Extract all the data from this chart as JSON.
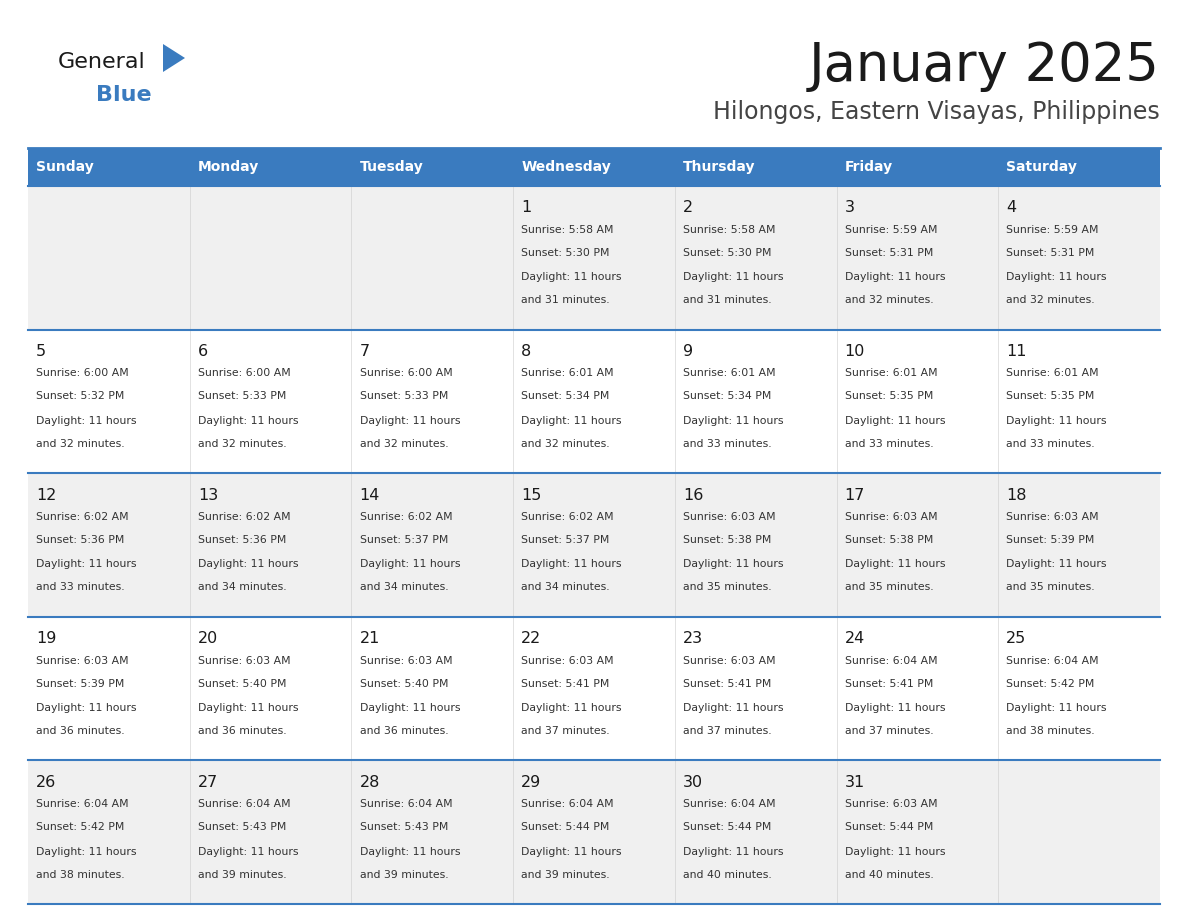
{
  "title": "January 2025",
  "subtitle": "Hilongos, Eastern Visayas, Philippines",
  "header_bg": "#3a7bbf",
  "header_text": "#ffffff",
  "row_bg_odd": "#f0f0f0",
  "row_bg_even": "#ffffff",
  "day_names": [
    "Sunday",
    "Monday",
    "Tuesday",
    "Wednesday",
    "Thursday",
    "Friday",
    "Saturday"
  ],
  "days": [
    {
      "day": 1,
      "col": 3,
      "row": 0,
      "sunrise": "5:58 AM",
      "sunset": "5:30 PM",
      "daylight": "11 hours and 31 minutes."
    },
    {
      "day": 2,
      "col": 4,
      "row": 0,
      "sunrise": "5:58 AM",
      "sunset": "5:30 PM",
      "daylight": "11 hours and 31 minutes."
    },
    {
      "day": 3,
      "col": 5,
      "row": 0,
      "sunrise": "5:59 AM",
      "sunset": "5:31 PM",
      "daylight": "11 hours and 32 minutes."
    },
    {
      "day": 4,
      "col": 6,
      "row": 0,
      "sunrise": "5:59 AM",
      "sunset": "5:31 PM",
      "daylight": "11 hours and 32 minutes."
    },
    {
      "day": 5,
      "col": 0,
      "row": 1,
      "sunrise": "6:00 AM",
      "sunset": "5:32 PM",
      "daylight": "11 hours and 32 minutes."
    },
    {
      "day": 6,
      "col": 1,
      "row": 1,
      "sunrise": "6:00 AM",
      "sunset": "5:33 PM",
      "daylight": "11 hours and 32 minutes."
    },
    {
      "day": 7,
      "col": 2,
      "row": 1,
      "sunrise": "6:00 AM",
      "sunset": "5:33 PM",
      "daylight": "11 hours and 32 minutes."
    },
    {
      "day": 8,
      "col": 3,
      "row": 1,
      "sunrise": "6:01 AM",
      "sunset": "5:34 PM",
      "daylight": "11 hours and 32 minutes."
    },
    {
      "day": 9,
      "col": 4,
      "row": 1,
      "sunrise": "6:01 AM",
      "sunset": "5:34 PM",
      "daylight": "11 hours and 33 minutes."
    },
    {
      "day": 10,
      "col": 5,
      "row": 1,
      "sunrise": "6:01 AM",
      "sunset": "5:35 PM",
      "daylight": "11 hours and 33 minutes."
    },
    {
      "day": 11,
      "col": 6,
      "row": 1,
      "sunrise": "6:01 AM",
      "sunset": "5:35 PM",
      "daylight": "11 hours and 33 minutes."
    },
    {
      "day": 12,
      "col": 0,
      "row": 2,
      "sunrise": "6:02 AM",
      "sunset": "5:36 PM",
      "daylight": "11 hours and 33 minutes."
    },
    {
      "day": 13,
      "col": 1,
      "row": 2,
      "sunrise": "6:02 AM",
      "sunset": "5:36 PM",
      "daylight": "11 hours and 34 minutes."
    },
    {
      "day": 14,
      "col": 2,
      "row": 2,
      "sunrise": "6:02 AM",
      "sunset": "5:37 PM",
      "daylight": "11 hours and 34 minutes."
    },
    {
      "day": 15,
      "col": 3,
      "row": 2,
      "sunrise": "6:02 AM",
      "sunset": "5:37 PM",
      "daylight": "11 hours and 34 minutes."
    },
    {
      "day": 16,
      "col": 4,
      "row": 2,
      "sunrise": "6:03 AM",
      "sunset": "5:38 PM",
      "daylight": "11 hours and 35 minutes."
    },
    {
      "day": 17,
      "col": 5,
      "row": 2,
      "sunrise": "6:03 AM",
      "sunset": "5:38 PM",
      "daylight": "11 hours and 35 minutes."
    },
    {
      "day": 18,
      "col": 6,
      "row": 2,
      "sunrise": "6:03 AM",
      "sunset": "5:39 PM",
      "daylight": "11 hours and 35 minutes."
    },
    {
      "day": 19,
      "col": 0,
      "row": 3,
      "sunrise": "6:03 AM",
      "sunset": "5:39 PM",
      "daylight": "11 hours and 36 minutes."
    },
    {
      "day": 20,
      "col": 1,
      "row": 3,
      "sunrise": "6:03 AM",
      "sunset": "5:40 PM",
      "daylight": "11 hours and 36 minutes."
    },
    {
      "day": 21,
      "col": 2,
      "row": 3,
      "sunrise": "6:03 AM",
      "sunset": "5:40 PM",
      "daylight": "11 hours and 36 minutes."
    },
    {
      "day": 22,
      "col": 3,
      "row": 3,
      "sunrise": "6:03 AM",
      "sunset": "5:41 PM",
      "daylight": "11 hours and 37 minutes."
    },
    {
      "day": 23,
      "col": 4,
      "row": 3,
      "sunrise": "6:03 AM",
      "sunset": "5:41 PM",
      "daylight": "11 hours and 37 minutes."
    },
    {
      "day": 24,
      "col": 5,
      "row": 3,
      "sunrise": "6:04 AM",
      "sunset": "5:41 PM",
      "daylight": "11 hours and 37 minutes."
    },
    {
      "day": 25,
      "col": 6,
      "row": 3,
      "sunrise": "6:04 AM",
      "sunset": "5:42 PM",
      "daylight": "11 hours and 38 minutes."
    },
    {
      "day": 26,
      "col": 0,
      "row": 4,
      "sunrise": "6:04 AM",
      "sunset": "5:42 PM",
      "daylight": "11 hours and 38 minutes."
    },
    {
      "day": 27,
      "col": 1,
      "row": 4,
      "sunrise": "6:04 AM",
      "sunset": "5:43 PM",
      "daylight": "11 hours and 39 minutes."
    },
    {
      "day": 28,
      "col": 2,
      "row": 4,
      "sunrise": "6:04 AM",
      "sunset": "5:43 PM",
      "daylight": "11 hours and 39 minutes."
    },
    {
      "day": 29,
      "col": 3,
      "row": 4,
      "sunrise": "6:04 AM",
      "sunset": "5:44 PM",
      "daylight": "11 hours and 39 minutes."
    },
    {
      "day": 30,
      "col": 4,
      "row": 4,
      "sunrise": "6:04 AM",
      "sunset": "5:44 PM",
      "daylight": "11 hours and 40 minutes."
    },
    {
      "day": 31,
      "col": 5,
      "row": 4,
      "sunrise": "6:03 AM",
      "sunset": "5:44 PM",
      "daylight": "11 hours and 40 minutes."
    }
  ],
  "logo_general_color": "#1a1a1a",
  "logo_blue_color": "#3a7bbf",
  "logo_triangle_color": "#3a7bbf",
  "title_color": "#1a1a1a",
  "subtitle_color": "#444444",
  "text_color": "#333333",
  "day_num_color": "#1a1a1a",
  "line_color": "#3a7bbf"
}
